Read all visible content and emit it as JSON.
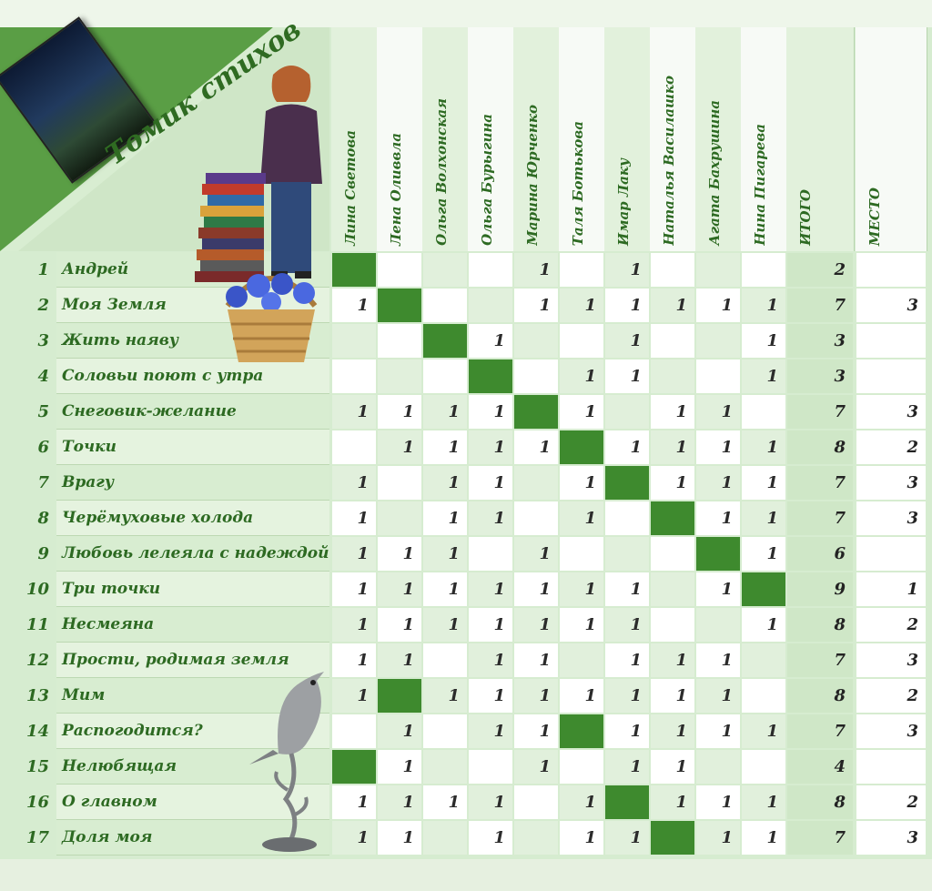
{
  "title": "Томик стихов",
  "columns": [
    "Лина Светова",
    "Лена Оливвла",
    "Ольга Волхонская",
    "Ольга Бурыгина",
    "Марина Юрченко",
    "Таля Ботькова",
    "Имар Лаку",
    "Наталья Василашко",
    "Агата Бахрушина",
    "Нина Пигарева"
  ],
  "total_label": "ИТОГО",
  "place_label": "МЕСТО",
  "self_column": [
    0,
    1,
    2,
    3,
    4,
    5,
    6,
    7,
    8,
    9,
    10,
    11,
    1,
    5,
    0,
    6,
    7
  ],
  "rows": [
    {
      "num": "1",
      "title": "Андрей",
      "votes": [
        "",
        "",
        "",
        "",
        "1",
        "",
        "1",
        "",
        "",
        ""
      ],
      "total": "2",
      "place": ""
    },
    {
      "num": "2",
      "title": "Моя Земля",
      "votes": [
        "1",
        "",
        "",
        "",
        "1",
        "1",
        "1",
        "1",
        "1",
        "1"
      ],
      "total": "7",
      "place": "3"
    },
    {
      "num": "3",
      "title": "Жить наяву",
      "votes": [
        "",
        "",
        "",
        "1",
        "",
        "",
        "1",
        "",
        "",
        "1"
      ],
      "total": "3",
      "place": ""
    },
    {
      "num": "4",
      "title": "Соловьи поют с утра",
      "votes": [
        "",
        "",
        "",
        "",
        "",
        "1",
        "1",
        "",
        "",
        "1"
      ],
      "total": "3",
      "place": ""
    },
    {
      "num": "5",
      "title": "Снеговик-желание",
      "votes": [
        "1",
        "1",
        "1",
        "1",
        "",
        "1",
        "",
        "1",
        "1",
        ""
      ],
      "total": "7",
      "place": "3"
    },
    {
      "num": "6",
      "title": "Точки",
      "votes": [
        "",
        "1",
        "1",
        "1",
        "1",
        "",
        "1",
        "1",
        "1",
        "1"
      ],
      "total": "8",
      "place": "2"
    },
    {
      "num": "7",
      "title": "Врагу",
      "votes": [
        "1",
        "",
        "1",
        "1",
        "",
        "1",
        "",
        "1",
        "1",
        "1"
      ],
      "total": "7",
      "place": "3"
    },
    {
      "num": "8",
      "title": "Черёмуховые холода",
      "votes": [
        "1",
        "",
        "1",
        "1",
        "",
        "1",
        "",
        "1",
        "1",
        "1"
      ],
      "total": "7",
      "place": "3"
    },
    {
      "num": "9",
      "title": "Любовь лелеяла с надеждой",
      "votes": [
        "1",
        "1",
        "1",
        "",
        "1",
        "",
        "",
        "",
        "1",
        "1"
      ],
      "total": "6",
      "place": ""
    },
    {
      "num": "10",
      "title": "Три точки",
      "votes": [
        "1",
        "1",
        "1",
        "1",
        "1",
        "1",
        "1",
        "",
        "1",
        "1"
      ],
      "total": "9",
      "place": "1"
    },
    {
      "num": "11",
      "title": "Несмеяна",
      "votes": [
        "1",
        "1",
        "1",
        "1",
        "1",
        "1",
        "1",
        "",
        "",
        "1"
      ],
      "total": "8",
      "place": "2"
    },
    {
      "num": "12",
      "title": "Прости, родимая земля",
      "votes": [
        "1",
        "1",
        "",
        "1",
        "1",
        "",
        "1",
        "1",
        "1",
        ""
      ],
      "total": "7",
      "place": "3"
    },
    {
      "num": "13",
      "title": "Мим",
      "votes": [
        "1",
        "",
        "1",
        "1",
        "1",
        "1",
        "1",
        "1",
        "1",
        ""
      ],
      "total": "8",
      "place": "2"
    },
    {
      "num": "14",
      "title": "Распогодится?",
      "votes": [
        "",
        "1",
        "",
        "1",
        "1",
        "",
        "1",
        "1",
        "1",
        "1"
      ],
      "total": "7",
      "place": "3"
    },
    {
      "num": "15",
      "title": "Нелюбящая",
      "votes": [
        "",
        "1",
        "",
        "",
        "1",
        "",
        "1",
        "1",
        "",
        ""
      ],
      "total": "4",
      "place": ""
    },
    {
      "num": "16",
      "title": "О главном",
      "votes": [
        "1",
        "1",
        "1",
        "1",
        "",
        "1",
        "",
        "1",
        "1",
        "1"
      ],
      "total": "8",
      "place": "2"
    },
    {
      "num": "17",
      "title": "Доля моя",
      "votes": [
        "1",
        "1",
        "",
        "1",
        "",
        "1",
        "1",
        "",
        "1",
        "1"
      ],
      "total": "7",
      "place": "3"
    }
  ],
  "icons": [
    "book-cover-thumbnail",
    "woman-portrait",
    "book-stack-icon",
    "cornflower-basket-icon",
    "bird-statuette-icon"
  ],
  "colors": {
    "accent": "#3e8a2e",
    "header_text": "#2d6a22",
    "light_green": "#e1f0dc"
  }
}
